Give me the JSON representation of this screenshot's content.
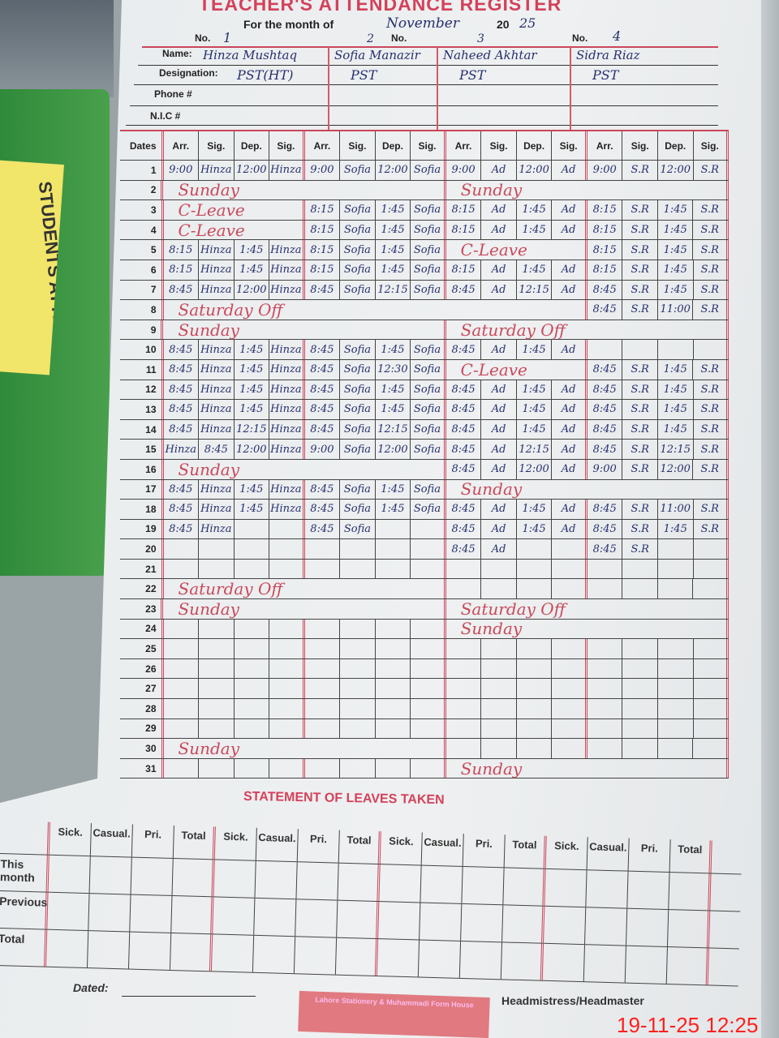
{
  "sticky_note": "STUDENTS ATTENDANCE REGISTER",
  "header": {
    "title": "TEACHER'S ATTENDANCE REGISTER",
    "month_label": "For the month of",
    "month": "November",
    "year_prefix": "20",
    "year": "25",
    "no_label": "No.",
    "numbers": [
      "1",
      "2",
      "3",
      "4"
    ],
    "name_label": "Name:",
    "designation_label": "Designation:",
    "phone_label": "Phone #",
    "nic_label": "N.I.C #"
  },
  "teachers": [
    {
      "name": "Hinza Mushtaq",
      "designation": "PST(HT)"
    },
    {
      "name": "Sofia Manazir",
      "designation": "PST"
    },
    {
      "name": "Naheed Akhtar",
      "designation": "PST"
    },
    {
      "name": "Sidra Riaz",
      "designation": "PST"
    }
  ],
  "columns": {
    "dates": "Dates",
    "sub": [
      "Arr.",
      "Sig.",
      "Dep.",
      "Sig."
    ]
  },
  "rows": [
    {
      "date": "1",
      "t": [
        [
          "9:00",
          "Hinza",
          "12:00",
          "Hinza"
        ],
        [
          "9:00",
          "Sofia",
          "12:00",
          "Sofia"
        ],
        [
          "9:00",
          "Ad",
          "12:00",
          "Ad"
        ],
        [
          "9:00",
          "S.R",
          "12:00",
          "S.R"
        ]
      ]
    },
    {
      "date": "2",
      "t": [
        {
          "note": "Sunday",
          "span": 2
        },
        {
          "note": "Sunday",
          "span": 2
        }
      ]
    },
    {
      "date": "3",
      "t": [
        {
          "note": "C-Leave",
          "span": 1
        },
        [
          "8:15",
          "Sofia",
          "1:45",
          "Sofia"
        ],
        [
          "8:15",
          "Ad",
          "1:45",
          "Ad"
        ],
        [
          "8:15",
          "S.R",
          "1:45",
          "S.R"
        ]
      ]
    },
    {
      "date": "4",
      "t": [
        {
          "note": "C-Leave",
          "span": 1
        },
        [
          "8:15",
          "Sofia",
          "1:45",
          "Sofia"
        ],
        [
          "8:15",
          "Ad",
          "1:45",
          "Ad"
        ],
        [
          "8:15",
          "S.R",
          "1:45",
          "S.R"
        ]
      ]
    },
    {
      "date": "5",
      "t": [
        [
          "8:15",
          "Hinza",
          "1:45",
          "Hinza"
        ],
        [
          "8:15",
          "Sofia",
          "1:45",
          "Sofia"
        ],
        {
          "note": "C-Leave",
          "span": 1
        },
        [
          "8:15",
          "S.R",
          "1:45",
          "S.R"
        ]
      ]
    },
    {
      "date": "6",
      "t": [
        [
          "8:15",
          "Hinza",
          "1:45",
          "Hinza"
        ],
        [
          "8:15",
          "Sofia",
          "1:45",
          "Sofia"
        ],
        [
          "8:15",
          "Ad",
          "1:45",
          "Ad"
        ],
        [
          "8:15",
          "S.R",
          "1:45",
          "S.R"
        ]
      ]
    },
    {
      "date": "7",
      "t": [
        [
          "8:45",
          "Hinza",
          "12:00",
          "Hinza"
        ],
        [
          "8:45",
          "Sofia",
          "12:15",
          "Sofia"
        ],
        [
          "8:45",
          "Ad",
          "12:15",
          "Ad"
        ],
        [
          "8:45",
          "S.R",
          "1:45",
          "S.R"
        ]
      ]
    },
    {
      "date": "8",
      "t": [
        {
          "note": "Saturday Off",
          "span": 3
        },
        [
          "8:45",
          "S.R",
          "11:00",
          "S.R"
        ]
      ]
    },
    {
      "date": "9",
      "t": [
        {
          "note": "Sunday",
          "span": 2
        },
        {
          "note": "Saturday Off",
          "span": 2
        }
      ]
    },
    {
      "date": "10",
      "t": [
        [
          "8:45",
          "Hinza",
          "1:45",
          "Hinza"
        ],
        [
          "8:45",
          "Sofia",
          "1:45",
          "Sofia"
        ],
        [
          "8:45",
          "Ad",
          "1:45",
          "Ad"
        ],
        [
          "",
          "",
          "",
          ""
        ]
      ]
    },
    {
      "date": "11",
      "t": [
        [
          "8:45",
          "Hinza",
          "1:45",
          "Hinza"
        ],
        [
          "8:45",
          "Sofia",
          "12:30",
          "Sofia"
        ],
        {
          "note": "C-Leave",
          "span": 1
        },
        [
          "8:45",
          "S.R",
          "1:45",
          "S.R"
        ]
      ]
    },
    {
      "date": "12",
      "t": [
        [
          "8:45",
          "Hinza",
          "1:45",
          "Hinza"
        ],
        [
          "8:45",
          "Sofia",
          "1:45",
          "Sofia"
        ],
        [
          "8:45",
          "Ad",
          "1:45",
          "Ad"
        ],
        [
          "8:45",
          "S.R",
          "1:45",
          "S.R"
        ]
      ]
    },
    {
      "date": "13",
      "t": [
        [
          "8:45",
          "Hinza",
          "1:45",
          "Hinza"
        ],
        [
          "8:45",
          "Sofia",
          "1:45",
          "Sofia"
        ],
        [
          "8:45",
          "Ad",
          "1:45",
          "Ad"
        ],
        [
          "8:45",
          "S.R",
          "1:45",
          "S.R"
        ]
      ]
    },
    {
      "date": "14",
      "t": [
        [
          "8:45",
          "Hinza",
          "12:15",
          "Hinza"
        ],
        [
          "8:45",
          "Sofia",
          "12:15",
          "Sofia"
        ],
        [
          "8:45",
          "Ad",
          "1:45",
          "Ad"
        ],
        [
          "8:45",
          "S.R",
          "1:45",
          "S.R"
        ]
      ]
    },
    {
      "date": "15",
      "t": [
        [
          "Hinza",
          "8:45",
          "12:00",
          "Hinza"
        ],
        [
          "9:00",
          "Sofia",
          "12:00",
          "Sofia"
        ],
        [
          "8:45",
          "Ad",
          "12:15",
          "Ad"
        ],
        [
          "8:45",
          "S.R",
          "12:15",
          "S.R"
        ]
      ]
    },
    {
      "date": "16",
      "t": [
        {
          "note": "Sunday",
          "span": 2
        },
        [
          "8:45",
          "Ad",
          "12:00",
          "Ad"
        ],
        [
          "9:00",
          "S.R",
          "12:00",
          "S.R"
        ]
      ]
    },
    {
      "date": "17",
      "t": [
        [
          "8:45",
          "Hinza",
          "1:45",
          "Hinza"
        ],
        [
          "8:45",
          "Sofia",
          "1:45",
          "Sofia"
        ],
        {
          "note": "Sunday",
          "span": 2
        }
      ]
    },
    {
      "date": "18",
      "t": [
        [
          "8:45",
          "Hinza",
          "1:45",
          "Hinza"
        ],
        [
          "8:45",
          "Sofia",
          "1:45",
          "Sofia"
        ],
        [
          "8:45",
          "Ad",
          "1:45",
          "Ad"
        ],
        [
          "8:45",
          "S.R",
          "11:00",
          "S.R"
        ]
      ]
    },
    {
      "date": "19",
      "t": [
        [
          "8:45",
          "Hinza",
          "",
          ""
        ],
        [
          "8:45",
          "Sofia",
          "",
          ""
        ],
        [
          "8:45",
          "Ad",
          "1:45",
          "Ad"
        ],
        [
          "8:45",
          "S.R",
          "1:45",
          "S.R"
        ]
      ]
    },
    {
      "date": "20",
      "t": [
        [
          "",
          "",
          "",
          ""
        ],
        [
          "",
          "",
          "",
          ""
        ],
        [
          "8:45",
          "Ad",
          "",
          ""
        ],
        [
          "8:45",
          "S.R",
          "",
          ""
        ]
      ]
    },
    {
      "date": "21",
      "t": []
    },
    {
      "date": "22",
      "t": [
        {
          "note": "Saturday Off",
          "span": 2
        }
      ]
    },
    {
      "date": "23",
      "t": [
        {
          "note": "Sunday",
          "span": 2
        },
        {
          "note": "Saturday Off",
          "span": 2
        }
      ]
    },
    {
      "date": "24",
      "t": [
        [
          "",
          "",
          "",
          ""
        ],
        [
          "",
          "",
          "",
          ""
        ],
        {
          "note": "Sunday",
          "span": 2
        }
      ]
    },
    {
      "date": "25",
      "t": []
    },
    {
      "date": "26",
      "t": []
    },
    {
      "date": "27",
      "t": []
    },
    {
      "date": "28",
      "t": []
    },
    {
      "date": "29",
      "t": []
    },
    {
      "date": "30",
      "t": [
        {
          "note": "Sunday",
          "span": 2
        }
      ]
    },
    {
      "date": "31",
      "t": [
        [
          "",
          "",
          "",
          ""
        ],
        [
          "",
          "",
          "",
          ""
        ],
        {
          "note": "Sunday",
          "span": 2
        }
      ]
    }
  ],
  "leaves": {
    "title": "STATEMENT OF LEAVES TAKEN",
    "columns": [
      "Sick.",
      "Casual.",
      "Pri.",
      "Total"
    ],
    "rows": [
      "This month",
      "Previous",
      "Total"
    ]
  },
  "footer": {
    "dated_label": "Dated:",
    "stamp": "Lahore Stationery & Muhammadi Form House",
    "signature_label": "Headmistress/Headmaster",
    "timestamp": "19-11-25  12:25"
  },
  "colors": {
    "print_red": "#d4415a",
    "ink_blue": "#27306e",
    "highlight_red": "#c94a5c",
    "timestamp": "#ff1f1f"
  }
}
